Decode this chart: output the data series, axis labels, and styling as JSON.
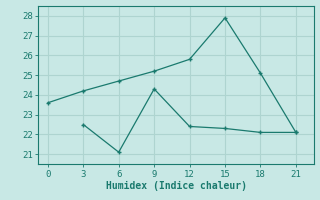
{
  "xlabel": "Humidex (Indice chaleur)",
  "line1_x": [
    0,
    3,
    6,
    9,
    12,
    15,
    18,
    21
  ],
  "line1_y": [
    23.6,
    24.2,
    24.7,
    25.2,
    25.8,
    27.9,
    25.1,
    22.1
  ],
  "line2_x": [
    3,
    6,
    9,
    12,
    15,
    18,
    21
  ],
  "line2_y": [
    22.5,
    21.1,
    24.3,
    22.4,
    22.3,
    22.1,
    22.1
  ],
  "line_color": "#1a7a6e",
  "bg_color": "#c8e8e5",
  "grid_color": "#aed4d0",
  "tick_color": "#1a7a6e",
  "label_color": "#1a7a6e",
  "xlim": [
    -0.8,
    22.5
  ],
  "ylim": [
    20.5,
    28.5
  ],
  "xticks": [
    0,
    3,
    6,
    9,
    12,
    15,
    18,
    21
  ],
  "yticks": [
    21,
    22,
    23,
    24,
    25,
    26,
    27,
    28
  ],
  "marker": "+"
}
